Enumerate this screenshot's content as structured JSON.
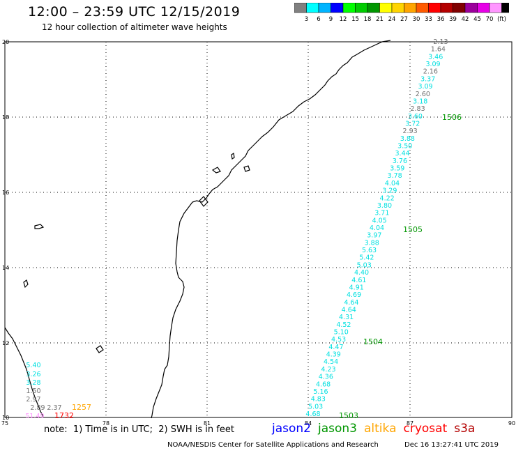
{
  "header": {
    "title": "12:00 – 23:59 UTC 12/15/2019",
    "subtitle": "12 hour collection of altimeter wave heights"
  },
  "scale": {
    "labels": [
      "3",
      "6",
      "9",
      "12",
      "15",
      "18",
      "21",
      "24",
      "27",
      "30",
      "33",
      "36",
      "39",
      "42",
      "45",
      "70",
      "(ft)"
    ],
    "colors": [
      "#808080",
      "#00ffff",
      "#00b4ff",
      "#0000ff",
      "#00ff00",
      "#00cc00",
      "#009600",
      "#ffff00",
      "#ffd400",
      "#ffa500",
      "#ff5a00",
      "#ff0000",
      "#b40000",
      "#800000",
      "#9b009b",
      "#e600e6",
      "#ff96ff",
      "#000000"
    ]
  },
  "axes": {
    "y_ticks": [
      "20",
      "18",
      "16",
      "14",
      "12",
      "10"
    ],
    "x_ticks": [
      "75",
      "78",
      "81",
      "84",
      "87",
      "90"
    ]
  },
  "track_main": {
    "values": [
      "2.13",
      "1.64",
      "3.46",
      "3.09",
      "2.16",
      "3.37",
      "3.09",
      "2.60",
      "3.18",
      "2.83",
      "3.60",
      "3.72",
      "2.93",
      "3.88",
      "3.50",
      "3.44",
      "3.76",
      "3.59",
      "3.78",
      "4.04",
      "3.29",
      "4.22",
      "3.80",
      "3.71",
      "4.05",
      "4.04",
      "3.97",
      "3.88",
      "5.63",
      "5.42",
      "5.03",
      "4.40",
      "4.61",
      "4.91",
      "4.69",
      "4.64",
      "4.64",
      "4.31",
      "4.52",
      "5.10",
      "4.53",
      "4.47",
      "4.39",
      "4.54",
      "4.23",
      "4.36",
      "4.68",
      "5.16",
      "4.83",
      "5.03",
      "4.68"
    ],
    "colors": [
      "gray",
      "gray",
      "cyan",
      "cyan",
      "gray",
      "cyan",
      "cyan",
      "gray",
      "cyan",
      "gray",
      "cyan",
      "cyan",
      "gray",
      "cyan",
      "cyan",
      "cyan",
      "cyan",
      "cyan",
      "cyan",
      "cyan",
      "cyan",
      "cyan",
      "cyan",
      "cyan",
      "cyan",
      "cyan",
      "cyan",
      "cyan",
      "cyan",
      "cyan",
      "cyan",
      "cyan",
      "cyan",
      "cyan",
      "cyan",
      "cyan",
      "cyan",
      "cyan",
      "cyan",
      "cyan",
      "cyan",
      "cyan",
      "cyan",
      "cyan",
      "cyan",
      "cyan",
      "cyan",
      "cyan",
      "cyan",
      "cyan",
      "cyan"
    ],
    "times": [
      "1506",
      "1505",
      "1504",
      "1503"
    ]
  },
  "track_left": {
    "values": [
      "5.40",
      "3.26",
      "3.28",
      "1.50",
      "2.97",
      "2.89",
      "2.37",
      "51.49"
    ],
    "time_orange": "1257",
    "time_red": "1732"
  },
  "footer": {
    "note": "note:  1) Time is in UTC;  2) SWH is in feet",
    "legend": [
      {
        "label": "jason2",
        "color": "#0000ff"
      },
      {
        "label": "jason3",
        "color": "#009600"
      },
      {
        "label": "altika",
        "color": "#ffa500"
      },
      {
        "label": "cryosat",
        "color": "#ff0000"
      },
      {
        "label": "s3a",
        "color": "#b40000"
      }
    ],
    "credit": "NOAA/NESDIS Center for Satellite Applications and Research",
    "timestamp": "Dec 16 13:27:41 UTC 2019"
  }
}
